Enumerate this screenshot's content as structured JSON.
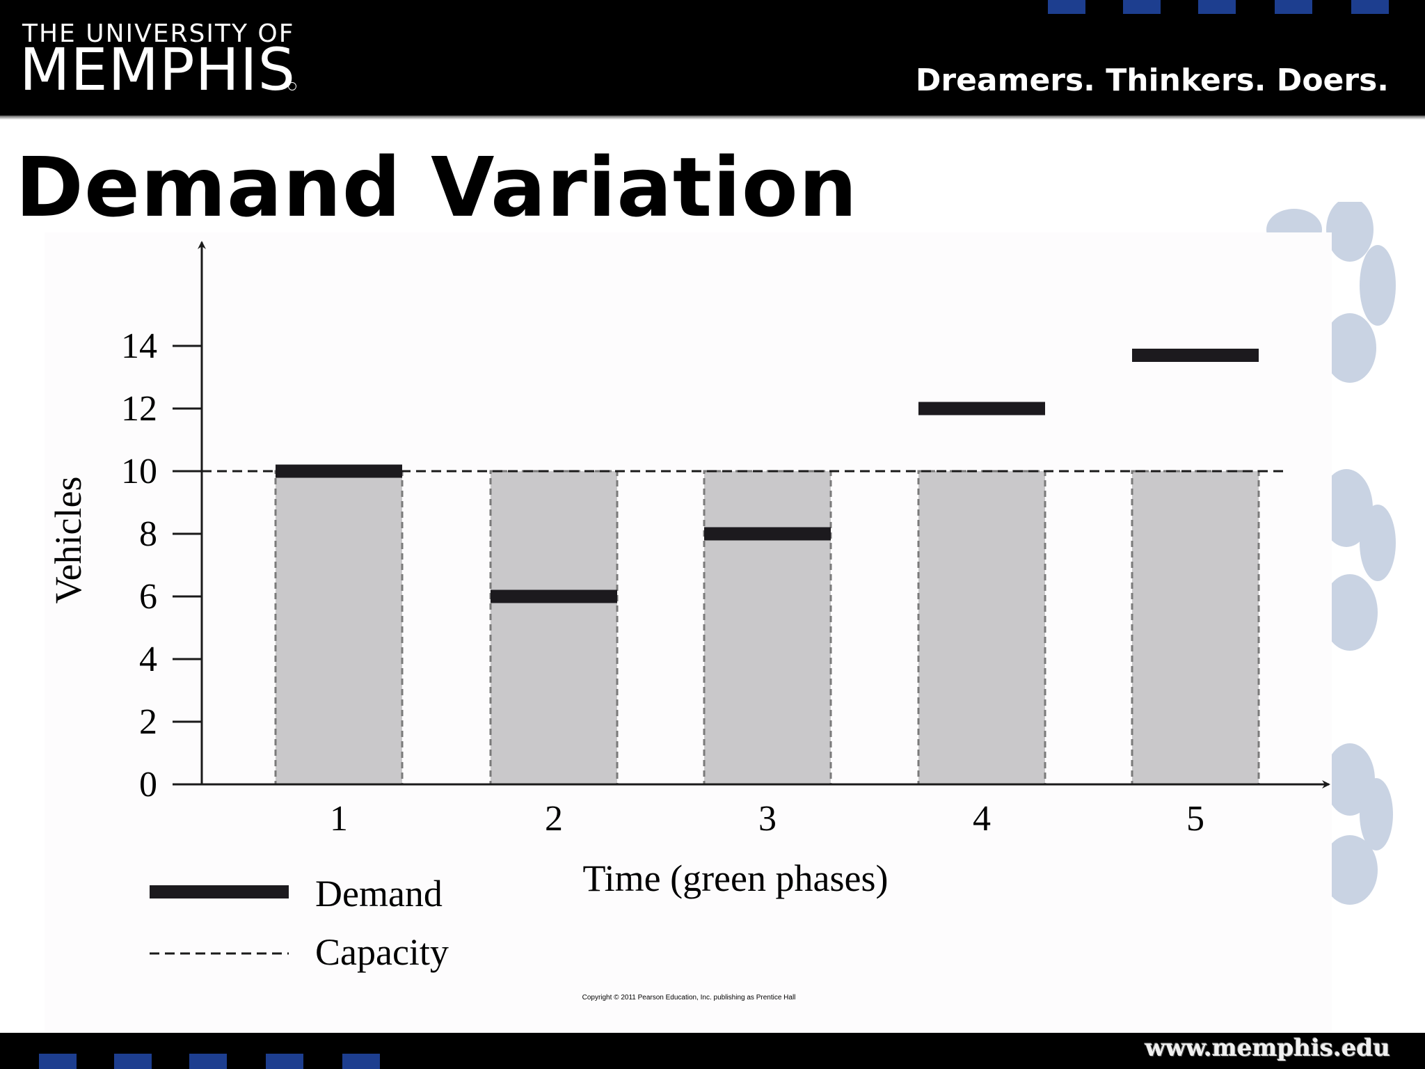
{
  "header": {
    "logo_line1": "THE UNIVERSITY OF",
    "logo_line2": "MEMPHIS",
    "tagline": "Dreamers. Thinkers. Doers.",
    "bg_color": "#000000",
    "accent_color": "#1d3e8f"
  },
  "slide": {
    "title": "Demand Variation"
  },
  "footer": {
    "url": "www.memphis.edu"
  },
  "copyright": "Copyright © 2011 Pearson Education, Inc. publishing as Prentice Hall",
  "chart_data": {
    "type": "bar",
    "title": "",
    "xlabel": "Time (green phases)",
    "ylabel": "Vehicles",
    "categories": [
      "1",
      "2",
      "3",
      "4",
      "5"
    ],
    "yticks": [
      "0",
      "2",
      "4",
      "6",
      "8",
      "10",
      "12",
      "14"
    ],
    "ylim": [
      0,
      16
    ],
    "series": [
      {
        "name": "Capacity",
        "style": "gray shaded bar with dashed outline + dashed horizontal line",
        "values": [
          10,
          10,
          10,
          10,
          10
        ]
      },
      {
        "name": "Demand",
        "style": "thick black horizontal bar",
        "values": [
          10,
          6,
          8,
          12,
          13.7
        ]
      }
    ],
    "legend": [
      {
        "label": "Demand",
        "style": "solid"
      },
      {
        "label": "Capacity",
        "style": "dashed"
      }
    ],
    "legend_position": "bottom-left",
    "grid": false,
    "colors": {
      "capacity_fill": "#c9c8ca",
      "capacity_edge": "#7a7a7a",
      "demand": "#1c1a1e"
    }
  }
}
